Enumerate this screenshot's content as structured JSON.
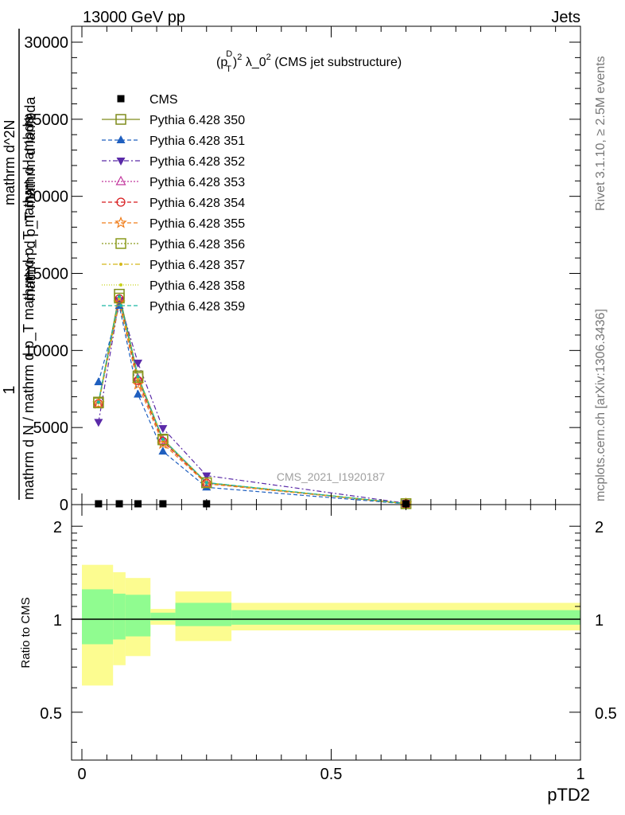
{
  "header": {
    "left_title": "13000 GeV pp",
    "right_title": "Jets"
  },
  "side_texts": {
    "rivet": "Rivet 3.1.10, ≥ 2.5M events",
    "mcplots": "mcplots.cern.ch [arXiv:1306.3436]"
  },
  "chart_data": [
    {
      "type": "line",
      "title": "(p_T^D)^2 λ_0^2 (CMS jet substructure)",
      "title_parts": {
        "open": "(p",
        "sup1": "D",
        "sub1": "T",
        "close": ")",
        "sup2": "2",
        "mid": " λ_0",
        "sup3": "2",
        "tail": " (CMS jet substructure)"
      },
      "ylabel_lines": [
        "1",
        "mathrm d N / mathrm d p_T mathrm d p_T mathrm d lambda",
        "mathrm d^2N",
        "mathrm d p_T mathrm d lambda"
      ],
      "xlabel": "",
      "watermark": "CMS_2021_I1920187",
      "ylim": [
        0,
        30000
      ],
      "xlim": [
        0,
        1
      ],
      "yticks": [
        0,
        5000,
        10000,
        15000,
        20000,
        25000,
        30000
      ],
      "ytick_labels": [
        "0",
        "5000",
        "10000",
        "15000",
        "20000",
        "25000",
        "30000"
      ],
      "legend_position": "top-left",
      "x": [
        0.0333,
        0.075,
        0.1125,
        0.1625,
        0.25,
        0.65
      ],
      "data": {
        "name": "CMS",
        "values": [
          1.0,
          1.0,
          1.0,
          1.0,
          1.0,
          1.0
        ]
      },
      "series": [
        {
          "name": "Pythia 6.428 350",
          "color": "#7f8c1c",
          "marker": "square-open",
          "dash": "solid",
          "values": [
            6650,
            13650,
            8350,
            4250,
            1420,
            60
          ]
        },
        {
          "name": "Pythia 6.428 351",
          "color": "#1f5fbf",
          "marker": "triangle-up",
          "dash": "5,3",
          "values": [
            7950,
            12900,
            7150,
            3450,
            1120,
            45
          ]
        },
        {
          "name": "Pythia 6.428 352",
          "color": "#5a2aa8",
          "marker": "triangle-down",
          "dash": "6,3,2,3",
          "values": [
            5350,
            13250,
            9200,
            4950,
            1880,
            90
          ]
        },
        {
          "name": "Pythia 6.428 353",
          "color": "#c2379e",
          "marker": "triangle-open",
          "dash": "2,2",
          "values": [
            6500,
            13300,
            8150,
            4150,
            1380,
            60
          ]
        },
        {
          "name": "Pythia 6.428 354",
          "color": "#d7191c",
          "marker": "circle-open",
          "dash": "5,3",
          "values": [
            6550,
            13350,
            8050,
            4100,
            1390,
            60
          ]
        },
        {
          "name": "Pythia 6.428 355",
          "color": "#f07d1a",
          "marker": "star-open",
          "dash": "5,3",
          "values": [
            6550,
            13100,
            7800,
            3950,
            1350,
            55
          ]
        },
        {
          "name": "Pythia 6.428 356",
          "color": "#8a9a1c",
          "marker": "square-open",
          "dash": "2,2",
          "values": [
            6600,
            13400,
            8250,
            4200,
            1420,
            60
          ]
        },
        {
          "name": "Pythia 6.428 357",
          "color": "#d4b81a",
          "marker": "dot",
          "dash": "6,3,2,3",
          "values": [
            6600,
            13350,
            8200,
            4200,
            1410,
            60
          ]
        },
        {
          "name": "Pythia 6.428 358",
          "color": "#c8d21a",
          "marker": "dot",
          "dash": "1,2",
          "values": [
            6620,
            13450,
            8280,
            4230,
            1420,
            60
          ]
        },
        {
          "name": "Pythia 6.428 359",
          "color": "#1ab8a3",
          "marker": "dot",
          "dash": "5,3",
          "values": [
            6650,
            13500,
            8300,
            4250,
            1430,
            60
          ]
        }
      ]
    },
    {
      "type": "area",
      "ylabel": "Ratio to CMS",
      "xlabel": "pTD2",
      "xlim": [
        0,
        1
      ],
      "ylim": [
        0.35,
        2.35
      ],
      "log_scale_y": true,
      "yticks": [
        0.5,
        1,
        2
      ],
      "ytick_labels": [
        "0.5",
        "1",
        "2"
      ],
      "xticks": [
        0,
        0.5,
        1
      ],
      "xtick_labels": [
        "0",
        "0.5",
        "1"
      ],
      "reference_line": 1.0,
      "bins": [
        {
          "x": [
            0.0,
            0.0625
          ],
          "inner": [
            0.83,
            1.25
          ],
          "outer": [
            0.61,
            1.5
          ]
        },
        {
          "x": [
            0.0625,
            0.0875
          ],
          "inner": [
            0.86,
            1.21
          ],
          "outer": [
            0.71,
            1.42
          ]
        },
        {
          "x": [
            0.0875,
            0.1375
          ],
          "inner": [
            0.88,
            1.2
          ],
          "outer": [
            0.76,
            1.36
          ]
        },
        {
          "x": [
            0.1375,
            0.1875
          ],
          "inner": [
            0.99,
            1.05
          ],
          "outer": [
            0.96,
            1.08
          ]
        },
        {
          "x": [
            0.1875,
            0.3
          ],
          "inner": [
            0.95,
            1.13
          ],
          "outer": [
            0.85,
            1.23
          ]
        },
        {
          "x": [
            0.3,
            1.0
          ],
          "inner": [
            0.96,
            1.07
          ],
          "outer": [
            0.92,
            1.13
          ]
        }
      ],
      "colors": {
        "inner": "#90fc90",
        "outer": "#fcfc90"
      }
    }
  ]
}
